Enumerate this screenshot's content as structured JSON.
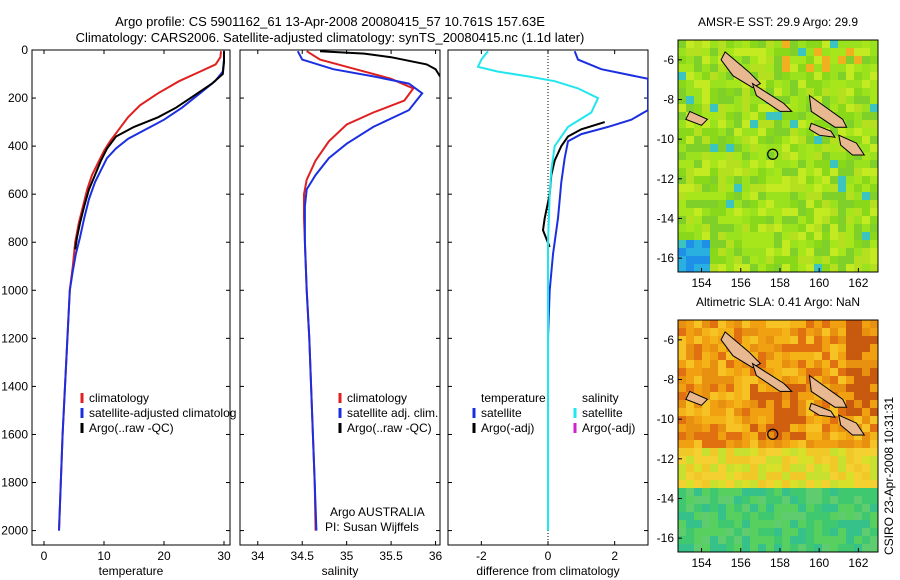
{
  "title_line1": "Argo profile: CS 5901162_61 13-Apr-2008 20080415_57 10.761S 157.63E",
  "title_line2": "Climatology: CARS2006. Satellite-adjusted climatology: synTS_20080415.nc (1.1d later)",
  "stamp": "CSIRO 23-Apr-2008 10:31:31",
  "colors": {
    "climatology": "#e02020",
    "satellite": "#1c2fe0",
    "argo": "#000000",
    "cyan": "#22e6ee",
    "magenta": "#d020d0"
  },
  "chart_data": [
    {
      "type": "line",
      "id": "temperature",
      "xlabel": "temperature",
      "xlim": [
        -2,
        31
      ],
      "xticks": [
        0,
        10,
        20,
        30
      ],
      "ylim": [
        0,
        2060
      ],
      "yticks": [
        0,
        200,
        400,
        600,
        800,
        1000,
        1200,
        1400,
        1600,
        1800,
        2000
      ],
      "y_reversed": true,
      "legend": [
        "climatology",
        "satellite-adjusted climatolog",
        "Argo(..raw -QC)"
      ],
      "series": [
        {
          "name": "climatology",
          "color": "red",
          "points": [
            [
              29.5,
              5
            ],
            [
              29.4,
              30
            ],
            [
              28.6,
              60
            ],
            [
              26,
              90
            ],
            [
              22.5,
              130
            ],
            [
              19,
              180
            ],
            [
              16,
              230
            ],
            [
              14,
              280
            ],
            [
              12.5,
              330
            ],
            [
              11,
              380
            ],
            [
              10,
              420
            ],
            [
              9,
              470
            ],
            [
              8,
              520
            ],
            [
              7.2,
              580
            ],
            [
              6.5,
              650
            ],
            [
              5.8,
              720
            ],
            [
              5.2,
              800
            ],
            [
              4.8,
              900
            ],
            [
              4.3,
              1000
            ],
            [
              3.9,
              1200
            ],
            [
              3.5,
              1400
            ],
            [
              3.1,
              1600
            ],
            [
              2.8,
              1800
            ],
            [
              2.5,
              2000
            ]
          ]
        },
        {
          "name": "satellite-adjusted climatolog",
          "color": "blue",
          "points": [
            [
              30,
              5
            ],
            [
              30,
              40
            ],
            [
              29.8,
              90
            ],
            [
              28.5,
              130
            ],
            [
              26,
              180
            ],
            [
              23,
              240
            ],
            [
              20,
              290
            ],
            [
              17,
              330
            ],
            [
              14,
              370
            ],
            [
              12,
              410
            ],
            [
              10.5,
              450
            ],
            [
              9.5,
              500
            ],
            [
              8.5,
              550
            ],
            [
              7.5,
              620
            ],
            [
              6.7,
              700
            ],
            [
              6,
              780
            ],
            [
              5.3,
              850
            ],
            [
              4.8,
              920
            ],
            [
              4.3,
              1000
            ],
            [
              3.9,
              1200
            ],
            [
              3.5,
              1400
            ],
            [
              3.1,
              1600
            ],
            [
              2.8,
              1800
            ],
            [
              2.5,
              2000
            ]
          ]
        },
        {
          "name": "Argo(..raw -QC)",
          "color": "black",
          "points": [
            [
              30,
              5
            ],
            [
              30,
              50
            ],
            [
              29.8,
              100
            ],
            [
              28,
              140
            ],
            [
              25,
              190
            ],
            [
              22,
              240
            ],
            [
              19,
              280
            ],
            [
              15,
              320
            ],
            [
              12,
              360
            ],
            [
              10.5,
              410
            ],
            [
              9.5,
              460
            ],
            [
              8.5,
              520
            ],
            [
              7.5,
              580
            ],
            [
              6.7,
              650
            ],
            [
              6,
              720
            ],
            [
              5.5,
              780
            ],
            [
              5.2,
              830
            ]
          ]
        }
      ]
    },
    {
      "type": "line",
      "id": "salinity",
      "xlabel": "salinity",
      "xlim": [
        33.8,
        36.05
      ],
      "xticks": [
        34,
        34.5,
        35,
        35.5,
        36
      ],
      "xticklabels": [
        "34",
        "34.5",
        "35",
        "35.5",
        "36"
      ],
      "ylim": [
        0,
        2060
      ],
      "y_reversed": true,
      "legend": [
        "climatology",
        "satellite adj. clim.",
        "Argo(..raw -QC)"
      ],
      "annotation": [
        "Argo AUSTRALIA",
        "PI: Susan Wijffels"
      ],
      "series": [
        {
          "name": "climatology",
          "color": "red",
          "points": [
            [
              34.55,
              5
            ],
            [
              34.7,
              40
            ],
            [
              35.1,
              80
            ],
            [
              35.5,
              120
            ],
            [
              35.75,
              160
            ],
            [
              35.65,
              210
            ],
            [
              35.3,
              260
            ],
            [
              35,
              310
            ],
            [
              34.8,
              380
            ],
            [
              34.65,
              460
            ],
            [
              34.55,
              540
            ],
            [
              34.52,
              600
            ],
            [
              34.52,
              700
            ],
            [
              34.53,
              800
            ],
            [
              34.55,
              1000
            ],
            [
              34.58,
              1200
            ],
            [
              34.6,
              1400
            ],
            [
              34.62,
              1600
            ],
            [
              34.64,
              1800
            ],
            [
              34.65,
              2000
            ]
          ]
        },
        {
          "name": "satellite adj. clim.",
          "color": "blue",
          "points": [
            [
              34.45,
              5
            ],
            [
              34.5,
              40
            ],
            [
              34.85,
              80
            ],
            [
              35.3,
              110
            ],
            [
              35.7,
              140
            ],
            [
              35.85,
              180
            ],
            [
              35.7,
              250
            ],
            [
              35.3,
              320
            ],
            [
              35,
              390
            ],
            [
              34.8,
              450
            ],
            [
              34.65,
              520
            ],
            [
              34.55,
              580
            ],
            [
              34.53,
              650
            ],
            [
              34.53,
              800
            ],
            [
              34.55,
              1000
            ],
            [
              34.58,
              1200
            ],
            [
              34.6,
              1400
            ],
            [
              34.62,
              1600
            ],
            [
              34.64,
              1800
            ],
            [
              34.66,
              2000
            ]
          ]
        },
        {
          "name": "Argo(..raw -QC)",
          "color": "black",
          "points": [
            [
              34.7,
              5
            ],
            [
              35.2,
              15
            ],
            [
              35.5,
              30
            ],
            [
              35.7,
              45
            ],
            [
              35.9,
              60
            ],
            [
              36.0,
              80
            ],
            [
              36.05,
              110
            ]
          ]
        }
      ]
    },
    {
      "type": "line",
      "id": "difference",
      "xlabel": "difference from climatology",
      "xlim": [
        -3,
        3
      ],
      "xticks": [
        -2,
        0,
        2
      ],
      "ylim": [
        0,
        2060
      ],
      "y_reversed": true,
      "legend_left": [
        "temperature",
        "satellite",
        "Argo(-adj)"
      ],
      "legend_right": [
        "salinity",
        "satellite",
        "Argo(-adj)"
      ],
      "series": [
        {
          "name": "temperature satellite",
          "color": "blue",
          "points": [
            [
              0.8,
              5
            ],
            [
              0.9,
              40
            ],
            [
              1.6,
              80
            ],
            [
              3,
              120
            ],
            [
              3,
              250
            ],
            [
              2.5,
              290
            ],
            [
              1.8,
              320
            ],
            [
              1,
              350
            ],
            [
              0.6,
              380
            ],
            [
              0.5,
              450
            ],
            [
              0.4,
              550
            ],
            [
              0.3,
              700
            ],
            [
              0.15,
              850
            ],
            [
              0.05,
              1000
            ],
            [
              0,
              1200
            ],
            [
              0,
              1400
            ],
            [
              0,
              1600
            ],
            [
              0,
              1800
            ],
            [
              0,
              2000
            ]
          ]
        },
        {
          "name": "temperature Argo",
          "color": "black",
          "points": [
            [
              1.7,
              300
            ],
            [
              1,
              330
            ],
            [
              0.6,
              360
            ],
            [
              0.4,
              400
            ],
            [
              0.2,
              460
            ],
            [
              0.1,
              520
            ],
            [
              0.05,
              600
            ],
            [
              -0.1,
              700
            ],
            [
              -0.15,
              750
            ],
            [
              0.05,
              820
            ]
          ]
        },
        {
          "name": "salinity satellite",
          "color": "cyan",
          "points": [
            [
              -1.8,
              5
            ],
            [
              -2,
              40
            ],
            [
              -2.1,
              70
            ],
            [
              -1.5,
              90
            ],
            [
              -0.6,
              110
            ],
            [
              0.2,
              130
            ],
            [
              0.9,
              160
            ],
            [
              1.5,
              200
            ],
            [
              1.3,
              260
            ],
            [
              0.6,
              320
            ],
            [
              0.2,
              400
            ],
            [
              0.1,
              500
            ],
            [
              0.05,
              600
            ],
            [
              0,
              800
            ],
            [
              0,
              1000
            ],
            [
              0,
              1200
            ],
            [
              0,
              1400
            ],
            [
              0,
              1600
            ],
            [
              0,
              1800
            ],
            [
              0,
              2000
            ]
          ]
        }
      ]
    },
    {
      "type": "heatmap",
      "id": "sst_map",
      "title": "AMSR-E SST: 29.9 Argo: 29.9",
      "xlim": [
        152.8,
        163
      ],
      "ylim": [
        -16.7,
        -5
      ],
      "xticks": [
        154,
        156,
        158,
        160,
        162
      ],
      "yticks": [
        -6,
        -8,
        -10,
        -12,
        -14,
        -16
      ],
      "marker": [
        157.63,
        -10.761
      ]
    },
    {
      "type": "heatmap",
      "id": "sla_map",
      "title": "Altimetric SLA: 0.41 Argo: NaN",
      "xlim": [
        152.8,
        163
      ],
      "ylim": [
        -16.7,
        -5
      ],
      "xticks": [
        154,
        156,
        158,
        160,
        162
      ],
      "yticks": [
        -6,
        -8,
        -10,
        -12,
        -14,
        -16
      ],
      "marker": [
        157.63,
        -10.761
      ]
    }
  ]
}
